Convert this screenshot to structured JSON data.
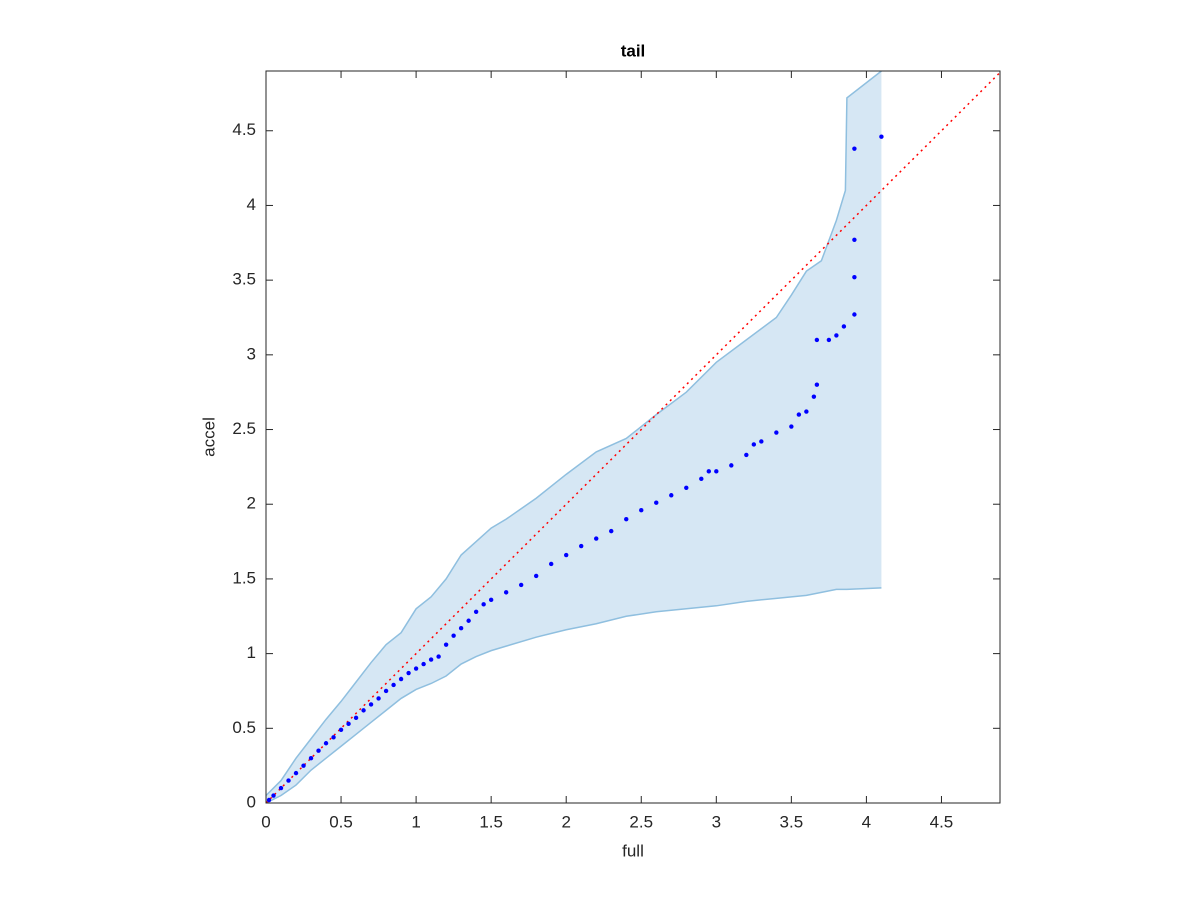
{
  "chart_data": {
    "type": "scatter",
    "title": "tail",
    "xlabel": "full",
    "ylabel": "accel",
    "xlim": [
      0,
      4.89
    ],
    "ylim": [
      0,
      4.9
    ],
    "xticks": [
      0,
      0.5,
      1,
      1.5,
      2,
      2.5,
      3,
      3.5,
      4,
      4.5
    ],
    "yticks": [
      0,
      0.5,
      1,
      1.5,
      2,
      2.5,
      3,
      3.5,
      4,
      4.5
    ],
    "color": "#0000ff",
    "x": [
      0.02,
      0.05,
      0.1,
      0.15,
      0.2,
      0.25,
      0.3,
      0.35,
      0.4,
      0.45,
      0.5,
      0.55,
      0.6,
      0.65,
      0.7,
      0.75,
      0.8,
      0.85,
      0.9,
      0.95,
      1.0,
      1.05,
      1.1,
      1.15,
      1.2,
      1.25,
      1.3,
      1.35,
      1.4,
      1.45,
      1.5,
      1.6,
      1.7,
      1.8,
      1.9,
      2.0,
      2.1,
      2.2,
      2.3,
      2.4,
      2.5,
      2.6,
      2.7,
      2.8,
      2.9,
      2.95,
      3.0,
      3.1,
      3.2,
      3.25,
      3.3,
      3.4,
      3.5,
      3.55,
      3.6,
      3.65,
      3.67,
      3.67,
      3.75,
      3.8,
      3.85,
      3.92,
      3.92,
      3.92,
      3.92,
      4.1
    ],
    "values": [
      0.02,
      0.05,
      0.1,
      0.15,
      0.2,
      0.25,
      0.3,
      0.35,
      0.4,
      0.44,
      0.49,
      0.53,
      0.57,
      0.62,
      0.66,
      0.7,
      0.75,
      0.79,
      0.83,
      0.87,
      0.9,
      0.93,
      0.96,
      0.98,
      1.06,
      1.12,
      1.17,
      1.22,
      1.28,
      1.33,
      1.36,
      1.41,
      1.46,
      1.52,
      1.6,
      1.66,
      1.72,
      1.77,
      1.82,
      1.9,
      1.96,
      2.01,
      2.06,
      2.11,
      2.17,
      2.22,
      2.22,
      2.26,
      2.33,
      2.4,
      2.42,
      2.48,
      2.52,
      2.6,
      2.62,
      2.72,
      2.8,
      3.1,
      3.1,
      3.13,
      3.19,
      3.27,
      3.52,
      3.77,
      4.38,
      4.46
    ],
    "band": {
      "color": "#d6e7f4",
      "edge_color": "#8fbfdf",
      "x": [
        0,
        0.1,
        0.2,
        0.3,
        0.4,
        0.5,
        0.6,
        0.7,
        0.8,
        0.9,
        1.0,
        1.1,
        1.2,
        1.3,
        1.4,
        1.5,
        1.6,
        1.8,
        2.0,
        2.2,
        2.4,
        2.6,
        2.8,
        3.0,
        3.2,
        3.4,
        3.5,
        3.6,
        3.7,
        3.8,
        3.86,
        3.87,
        4.1
      ],
      "upper": [
        0.05,
        0.15,
        0.3,
        0.43,
        0.56,
        0.68,
        0.81,
        0.94,
        1.06,
        1.14,
        1.3,
        1.38,
        1.5,
        1.66,
        1.75,
        1.84,
        1.9,
        2.04,
        2.2,
        2.35,
        2.44,
        2.6,
        2.75,
        2.95,
        3.1,
        3.25,
        3.4,
        3.56,
        3.63,
        3.9,
        4.1,
        4.72,
        4.9
      ],
      "lower": [
        0,
        0.05,
        0.12,
        0.22,
        0.3,
        0.38,
        0.46,
        0.54,
        0.62,
        0.7,
        0.76,
        0.8,
        0.85,
        0.93,
        0.98,
        1.02,
        1.05,
        1.11,
        1.16,
        1.2,
        1.25,
        1.28,
        1.3,
        1.32,
        1.35,
        1.37,
        1.38,
        1.39,
        1.41,
        1.43,
        1.43,
        1.43,
        1.44
      ]
    },
    "reference": {
      "color": "#ff0000",
      "x": [
        0,
        4.89
      ],
      "y": [
        0,
        4.89
      ]
    }
  }
}
